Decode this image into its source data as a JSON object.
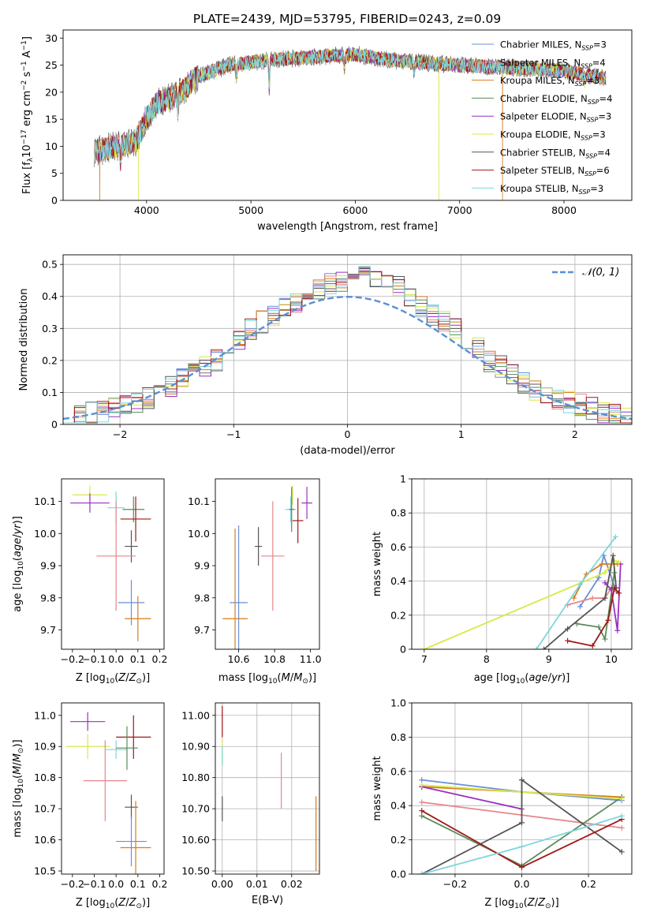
{
  "figure_title": "PLATE=2439, MJD=53795, FIBERID=0243, z=0.09",
  "colors": {
    "Chabrier MILES": "#6a8fd8",
    "Salpeter MILES": "#e8868a",
    "Kroupa MILES": "#d77c1d",
    "Chabrier ELODIE": "#5a8a5a",
    "Salpeter ELODIE": "#9b30c0",
    "Kroupa ELODIE": "#d9e84a",
    "Chabrier STELIB": "#555555",
    "Salpeter STELIB": "#a01818",
    "Kroupa STELIB": "#7dd6dc",
    "normal_fit": "#5b8fd6"
  },
  "chart_data": [
    {
      "id": "spectrum",
      "type": "line",
      "xlabel": "wavelength [Angstrom, rest frame]",
      "ylabel": "Flux [f_λ 10^-17 erg cm^-2 s^-1 A^-1]",
      "xlim": [
        3200,
        8650
      ],
      "ylim": [
        0,
        31.5
      ],
      "xticks": [
        4000,
        5000,
        6000,
        7000,
        8000
      ],
      "yticks": [
        0,
        5,
        10,
        15,
        20,
        25,
        30
      ],
      "grid": false,
      "legend_position": "right",
      "continuum_nodes": [
        [
          3500,
          9
        ],
        [
          3700,
          10
        ],
        [
          3900,
          11
        ],
        [
          4000,
          15
        ],
        [
          4100,
          18
        ],
        [
          4300,
          19.5
        ],
        [
          4500,
          23
        ],
        [
          4800,
          25
        ],
        [
          5200,
          26
        ],
        [
          5600,
          26.5
        ],
        [
          6000,
          27
        ],
        [
          6300,
          26
        ],
        [
          6600,
          25.5
        ],
        [
          7000,
          25
        ],
        [
          7500,
          24.5
        ],
        [
          8000,
          24
        ],
        [
          8400,
          22.5
        ]
      ],
      "dips": [
        [
          3750,
          6
        ],
        [
          4300,
          5
        ],
        [
          4860,
          4
        ],
        [
          5175,
          9
        ],
        [
          5895,
          4
        ],
        [
          6563,
          3
        ],
        [
          6800,
          27
        ],
        [
          8200,
          2
        ]
      ],
      "series_spikes": [
        {
          "x": 3550,
          "depth": 13,
          "series": 2
        },
        {
          "x": 3920,
          "depth": 13,
          "series": 5
        },
        {
          "x": 6800,
          "depth": 27,
          "series": 5
        },
        {
          "x": 7410,
          "depth": 24,
          "series": 2
        }
      ],
      "series": [
        {
          "name": "Chabrier MILES, N_SSP=3"
        },
        {
          "name": "Salpeter MILES, N_SSP=4"
        },
        {
          "name": "Kroupa MILES, N_SSP=3"
        },
        {
          "name": "Chabrier ELODIE, N_SSP=4"
        },
        {
          "name": "Salpeter ELODIE, N_SSP=3"
        },
        {
          "name": "Kroupa ELODIE, N_SSP=3"
        },
        {
          "name": "Chabrier STELIB, N_SSP=4"
        },
        {
          "name": "Salpeter STELIB, N_SSP=6"
        },
        {
          "name": "Kroupa STELIB, N_SSP=3"
        }
      ]
    },
    {
      "id": "residuals",
      "type": "line",
      "xlabel": "(data-model)/error",
      "ylabel": "Normed distribution",
      "xlim": [
        -2.5,
        2.5
      ],
      "ylim": [
        0,
        0.53
      ],
      "xticks": [
        -2,
        -1,
        0,
        1,
        2
      ],
      "yticks": [
        0.0,
        0.1,
        0.2,
        0.3,
        0.4,
        0.5
      ],
      "grid": true,
      "legend": [
        "N(0,1)"
      ],
      "legend_position": "top-right",
      "bin_width": 0.1,
      "histogram_envelope": [
        0.02,
        0.03,
        0.035,
        0.04,
        0.05,
        0.06,
        0.07,
        0.08,
        0.1,
        0.12,
        0.14,
        0.16,
        0.18,
        0.2,
        0.22,
        0.26,
        0.3,
        0.32,
        0.34,
        0.36,
        0.38,
        0.4,
        0.42,
        0.44,
        0.45,
        0.46,
        0.47,
        0.46,
        0.45,
        0.43,
        0.4,
        0.37,
        0.34,
        0.32,
        0.3,
        0.27,
        0.24,
        0.2,
        0.18,
        0.16,
        0.13,
        0.11,
        0.09,
        0.08,
        0.07,
        0.06,
        0.05,
        0.04,
        0.03,
        0.02
      ]
    },
    {
      "id": "age_vs_Z",
      "type": "scatter",
      "xlabel": "Z [log10(Z/Z_sun)]",
      "ylabel": "age [log10(age/yr)]",
      "xlim": [
        -0.25,
        0.22
      ],
      "ylim": [
        9.64,
        10.17
      ],
      "xticks": [
        -0.2,
        -0.1,
        0.0,
        0.1,
        0.2
      ],
      "yticks": [
        9.7,
        9.8,
        9.9,
        10.0,
        10.1
      ],
      "grid": false,
      "points": [
        {
          "x": -0.12,
          "y": 10.12,
          "xerr": 0.08,
          "yerr": 0.03,
          "c": 5
        },
        {
          "x": -0.12,
          "y": 10.095,
          "xerr": 0.09,
          "yerr": 0.03,
          "c": 4
        },
        {
          "x": 0.0,
          "y": 10.08,
          "xerr": 0.04,
          "yerr": 0.05,
          "c": 8
        },
        {
          "x": 0.08,
          "y": 10.075,
          "xerr": 0.05,
          "yerr": 0.04,
          "c": 3
        },
        {
          "x": 0.09,
          "y": 10.045,
          "xerr": 0.07,
          "yerr": 0.07,
          "c": 7
        },
        {
          "x": 0.07,
          "y": 9.96,
          "xerr": 0.03,
          "yerr": 0.05,
          "c": 6
        },
        {
          "x": 0.0,
          "y": 9.93,
          "xerr": 0.09,
          "yerr": 0.17,
          "c": 1
        },
        {
          "x": 0.07,
          "y": 9.785,
          "xerr": 0.06,
          "yerr": 0.07,
          "c": 0
        },
        {
          "x": 0.1,
          "y": 9.735,
          "xerr": 0.06,
          "yerr": 0.07,
          "c": 2
        }
      ]
    },
    {
      "id": "age_vs_mass",
      "type": "scatter",
      "xlabel": "mass [log10(M/M_sun)]",
      "ylabel": "",
      "xlim": [
        10.47,
        11.05
      ],
      "ylim": [
        9.64,
        10.17
      ],
      "xticks": [
        10.6,
        10.8,
        11.0
      ],
      "yticks": [
        9.7,
        9.8,
        9.9,
        10.0,
        10.1
      ],
      "grid": false,
      "points": [
        {
          "x": 10.9,
          "y": 10.12,
          "xerr": 0.005,
          "yerr": 0.03,
          "c": 5
        },
        {
          "x": 10.98,
          "y": 10.095,
          "xerr": 0.03,
          "yerr": 0.05,
          "c": 4
        },
        {
          "x": 10.89,
          "y": 10.075,
          "xerr": 0.03,
          "yerr": 0.04,
          "c": 8
        },
        {
          "x": 10.895,
          "y": 10.075,
          "xerr": 0.015,
          "yerr": 0.07,
          "c": 3
        },
        {
          "x": 10.93,
          "y": 10.04,
          "xerr": 0.03,
          "yerr": 0.07,
          "c": 7
        },
        {
          "x": 10.71,
          "y": 9.96,
          "xerr": 0.02,
          "yerr": 0.06,
          "c": 6
        },
        {
          "x": 10.79,
          "y": 9.93,
          "xerr": 0.065,
          "yerr": 0.17,
          "c": 1
        },
        {
          "x": 10.6,
          "y": 9.785,
          "xerr": 0.05,
          "yerr": 0.24,
          "c": 0
        },
        {
          "x": 10.58,
          "y": 9.735,
          "xerr": 0.07,
          "yerr": 0.28,
          "c": 2
        }
      ]
    },
    {
      "id": "mass_weight_vs_age",
      "type": "line",
      "xlabel": "age [log10(age/yr)]",
      "ylabel": "mass weight",
      "xlim": [
        6.8,
        10.33
      ],
      "ylim": [
        0,
        1.0
      ],
      "xticks": [
        7,
        8,
        9,
        10
      ],
      "yticks": [
        0.0,
        0.2,
        0.4,
        0.6,
        0.8,
        1.0
      ],
      "grid": true,
      "series": [
        {
          "c": 0,
          "points": [
            [
              9.5,
              0.25
            ],
            [
              9.8,
              0.42
            ],
            [
              9.88,
              0.55
            ],
            [
              10.08,
              0.34
            ]
          ]
        },
        {
          "c": 1,
          "points": [
            [
              9.3,
              0.26
            ],
            [
              9.7,
              0.3
            ],
            [
              9.9,
              0.3
            ],
            [
              10.0,
              0.36
            ]
          ]
        },
        {
          "c": 2,
          "points": [
            [
              9.4,
              0.3
            ],
            [
              9.6,
              0.44
            ],
            [
              9.85,
              0.5
            ],
            [
              10.1,
              0.5
            ]
          ]
        },
        {
          "c": 3,
          "points": [
            [
              9.45,
              0.15
            ],
            [
              9.8,
              0.13
            ],
            [
              9.9,
              0.06
            ],
            [
              10.05,
              0.45
            ]
          ]
        },
        {
          "c": 4,
          "points": [
            [
              9.9,
              0.39
            ],
            [
              10.0,
              0.35
            ],
            [
              10.1,
              0.11
            ],
            [
              10.15,
              0.5
            ]
          ]
        },
        {
          "c": 5,
          "points": [
            [
              7.0,
              0.0
            ],
            [
              9.9,
              0.45
            ],
            [
              10.05,
              0.52
            ],
            [
              10.12,
              0.51
            ]
          ]
        },
        {
          "c": 6,
          "points": [
            [
              8.92,
              0.0
            ],
            [
              9.3,
              0.12
            ],
            [
              9.9,
              0.3
            ],
            [
              10.03,
              0.55
            ],
            [
              10.08,
              0.36
            ]
          ]
        },
        {
          "c": 7,
          "points": [
            [
              9.3,
              0.05
            ],
            [
              9.7,
              0.02
            ],
            [
              9.95,
              0.17
            ],
            [
              10.05,
              0.36
            ],
            [
              10.12,
              0.33
            ]
          ]
        },
        {
          "c": 8,
          "points": [
            [
              8.8,
              0.0
            ],
            [
              9.5,
              0.38
            ],
            [
              10.07,
              0.66
            ]
          ]
        }
      ]
    },
    {
      "id": "mass_vs_Z",
      "type": "scatter",
      "xlabel": "Z [log10(Z/Z_sun)]",
      "ylabel": "mass [log10(M/M_sun)]",
      "xlim": [
        -0.25,
        0.22
      ],
      "ylim": [
        10.49,
        11.04
      ],
      "xticks": [
        -0.2,
        -0.1,
        0.0,
        0.1,
        0.2
      ],
      "yticks": [
        10.5,
        10.6,
        10.7,
        10.8,
        10.9,
        11.0
      ],
      "grid": false,
      "points": [
        {
          "x": -0.13,
          "y": 10.98,
          "xerr": 0.08,
          "yerr": 0.03,
          "c": 4
        },
        {
          "x": 0.08,
          "y": 10.93,
          "xerr": 0.08,
          "yerr": 0.07,
          "c": 7
        },
        {
          "x": -0.13,
          "y": 10.9,
          "xerr": 0.1,
          "yerr": 0.04,
          "c": 5
        },
        {
          "x": 0.0,
          "y": 10.89,
          "xerr": 0.05,
          "yerr": 0.03,
          "c": 8
        },
        {
          "x": 0.05,
          "y": 10.895,
          "xerr": 0.05,
          "yerr": 0.07,
          "c": 3
        },
        {
          "x": -0.05,
          "y": 10.79,
          "xerr": 0.1,
          "yerr": 0.13,
          "c": 1
        },
        {
          "x": 0.07,
          "y": 10.705,
          "xerr": 0.03,
          "yerr": 0.04,
          "c": 6
        },
        {
          "x": 0.07,
          "y": 10.595,
          "xerr": 0.07,
          "yerr": 0.08,
          "c": 0
        },
        {
          "x": 0.09,
          "y": 10.575,
          "xerr": 0.07,
          "yerr": 0.15,
          "c": 2
        }
      ]
    },
    {
      "id": "mass_vs_ebv",
      "type": "scatter",
      "xlabel": "E(B-V)",
      "ylabel": "",
      "xlim": [
        -0.002,
        0.028
      ],
      "ylim": [
        10.49,
        11.04
      ],
      "xticks": [
        0.0,
        0.01,
        0.02
      ],
      "yticks": [
        10.5,
        10.6,
        10.7,
        10.8,
        10.9,
        11.0
      ],
      "grid": true,
      "points": [
        {
          "x": 0.0,
          "y": 10.98,
          "xerr": 0,
          "yerr": 0.05,
          "c": 7
        },
        {
          "x": 0.0,
          "y": 10.88,
          "xerr": 0,
          "yerr": 0.04,
          "c": 5
        },
        {
          "x": 0.0,
          "y": 10.87,
          "xerr": 0,
          "yerr": 0.03,
          "c": 8
        },
        {
          "x": 0.0,
          "y": 10.7,
          "xerr": 0,
          "yerr": 0.04,
          "c": 6
        },
        {
          "x": 0.017,
          "y": 10.79,
          "xerr": 0,
          "yerr": 0.09,
          "c": 1
        },
        {
          "x": 0.027,
          "y": 10.62,
          "xerr": 0,
          "yerr": 0.12,
          "c": 2
        }
      ]
    },
    {
      "id": "mass_weight_vs_Z",
      "type": "line",
      "xlabel": "Z [log10(Z/Z_sun)]",
      "ylabel": "mass weight",
      "xlim": [
        -0.33,
        0.33
      ],
      "ylim": [
        0,
        1.0
      ],
      "xticks": [
        -0.2,
        0.0,
        0.2
      ],
      "yticks": [
        0.0,
        0.2,
        0.4,
        0.6,
        0.8,
        1.0
      ],
      "grid": true,
      "series": [
        {
          "c": 0,
          "points": [
            [
              -0.3,
              0.55
            ],
            [
              0.0,
              0.48
            ],
            [
              0.3,
              0.43
            ]
          ]
        },
        {
          "c": 1,
          "points": [
            [
              -0.3,
              0.42
            ],
            [
              0.3,
              0.27
            ]
          ]
        },
        {
          "c": 2,
          "points": [
            [
              -0.3,
              0.51
            ],
            [
              0.3,
              0.45
            ]
          ]
        },
        {
          "c": 3,
          "points": [
            [
              -0.3,
              0.34
            ],
            [
              0.0,
              0.05
            ],
            [
              0.3,
              0.45
            ]
          ]
        },
        {
          "c": 4,
          "points": [
            [
              -0.3,
              0.51
            ],
            [
              0.0,
              0.38
            ]
          ]
        },
        {
          "c": 5,
          "points": [
            [
              -0.3,
              0.52
            ],
            [
              0.3,
              0.44
            ]
          ]
        },
        {
          "c": 6,
          "points": [
            [
              -0.3,
              0.0
            ],
            [
              0.0,
              0.3
            ],
            [
              0.0,
              0.55
            ],
            [
              0.3,
              0.13
            ]
          ]
        },
        {
          "c": 7,
          "points": [
            [
              -0.3,
              0.37
            ],
            [
              0.0,
              0.04
            ],
            [
              0.3,
              0.32
            ]
          ]
        },
        {
          "c": 8,
          "points": [
            [
              -0.3,
              0.0
            ],
            [
              0.0,
              0.16
            ],
            [
              0.3,
              0.34
            ]
          ]
        }
      ]
    }
  ]
}
